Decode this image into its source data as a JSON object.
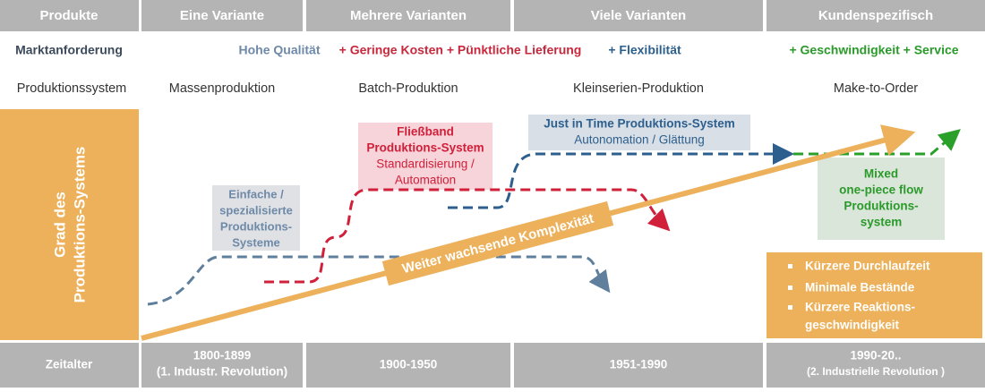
{
  "header": {
    "cells": [
      "Produkte",
      "Eine Variante",
      "Mehrere Varianten",
      "Viele Varianten",
      "Kundenspezifisch"
    ]
  },
  "requirements": {
    "label": "Marktanforderung",
    "items": [
      "Hohe Qualität",
      "+ Geringe Kosten + Pünktliche Lieferung",
      "+ Flexibilität",
      "+ Geschwindigkeit + Service"
    ]
  },
  "systems": {
    "label": "Produktionssystem",
    "items": [
      "Massenproduktion",
      "Batch-Produktion",
      "Kleinserien-Produktion",
      "Make-to-Order"
    ]
  },
  "axis_label": [
    "Grad des",
    "Produktions-Systems"
  ],
  "arrow_label": "Weiter wachsende Komplexität",
  "boxes": {
    "simple": [
      "Einfache /",
      "spezialisierte",
      "Produktions-",
      "Systeme"
    ],
    "assembly": {
      "title": [
        "Fließband",
        "Produktions-System"
      ],
      "text": [
        "Standardisierung /",
        "Automation"
      ]
    },
    "jit": {
      "title": "Just in Time Produktions-System",
      "text": "Autonomation / Glättung"
    },
    "mixed": [
      "Mixed",
      "one-piece flow",
      "Produktions-",
      "system"
    ],
    "benefits": [
      "Kürzere Durchlaufzeit",
      "Minimale Bestände",
      "Kürzere Reaktions-",
      "geschwindigkeit"
    ]
  },
  "eras": {
    "label": "Zeitalter",
    "items": [
      [
        "1800-1899",
        "(1. Industr. Revolution)"
      ],
      [
        "1900-1950"
      ],
      [
        "1951-1990"
      ],
      [
        "1990-20..",
        "(2. Industrielle Revolution )"
      ]
    ]
  }
}
